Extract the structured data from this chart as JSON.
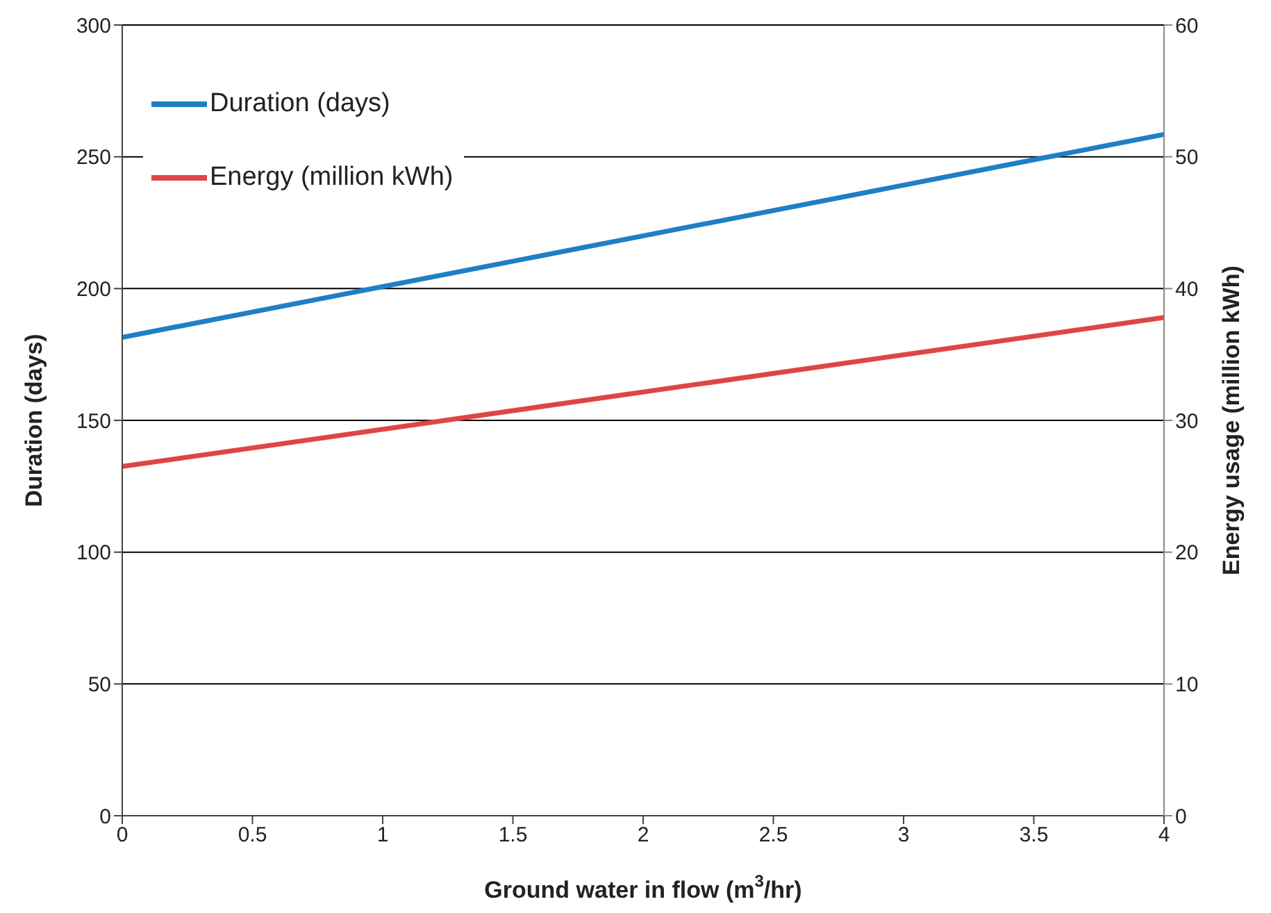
{
  "chart_data": {
    "type": "line",
    "xlabel": "Ground water in flow (m$^{3}$/hr)",
    "ylabel": "Duration (days)",
    "y2label": "Energy  usage (million kWh)",
    "x": [
      0,
      4
    ],
    "series": [
      {
        "name": "Duration (days)",
        "color": "#1f7fc4",
        "values": [
          181.5,
          258.5
        ]
      },
      {
        "name": "Energy (million kWh)",
        "color": "#e04545",
        "values": [
          26.5,
          37.8
        ],
        "axis": "y2"
      }
    ],
    "xlim": [
      0,
      4
    ],
    "xticks": [
      0,
      0.5,
      1,
      1.5,
      2,
      2.5,
      3,
      3.5,
      4
    ],
    "ylim": [
      0,
      300
    ],
    "yticks": [
      0,
      50,
      100,
      150,
      200,
      250,
      300
    ],
    "y2lim": [
      0,
      60
    ],
    "y2ticks": [
      0,
      10,
      20,
      30,
      40,
      50,
      60
    ],
    "grid": "y",
    "legend": "top left",
    "marker": "none",
    "line_style": "solid"
  }
}
